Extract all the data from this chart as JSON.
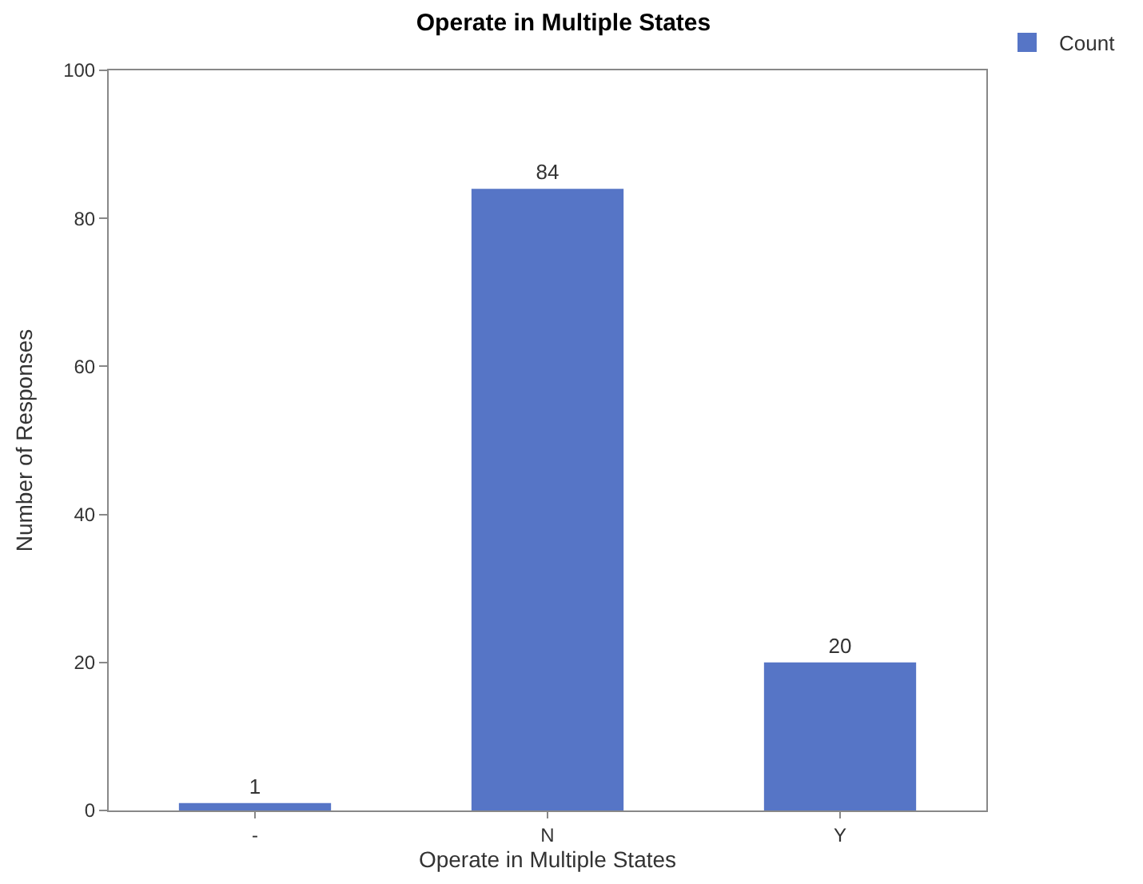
{
  "chart_data": {
    "type": "bar",
    "title": "Operate in Multiple States",
    "xlabel": "Operate in Multiple States",
    "ylabel": "Number of Responses",
    "categories": [
      "-",
      "N",
      "Y"
    ],
    "series": [
      {
        "name": "Count",
        "color": "#5675c6",
        "values": [
          1,
          84,
          20
        ]
      }
    ],
    "ylim": [
      0,
      100
    ],
    "yticks": [
      0,
      20,
      40,
      60,
      80,
      100
    ],
    "legend": "top right",
    "data_labels": true
  }
}
